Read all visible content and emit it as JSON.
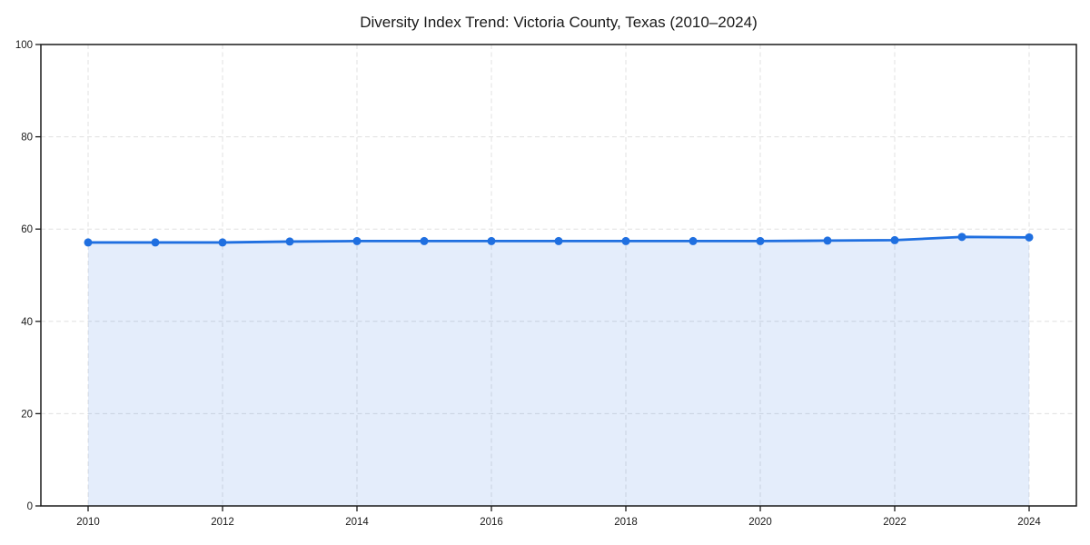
{
  "chart_data": {
    "type": "area",
    "title": "Diversity Index Trend: Victoria County, Texas (2010–2024)",
    "xlabel": "",
    "ylabel": "",
    "x": [
      2010,
      2011,
      2012,
      2013,
      2014,
      2015,
      2016,
      2017,
      2018,
      2019,
      2020,
      2021,
      2022,
      2023,
      2024
    ],
    "values": [
      57.1,
      57.1,
      57.1,
      57.3,
      57.4,
      57.4,
      57.4,
      57.4,
      57.4,
      57.4,
      57.4,
      57.5,
      57.6,
      58.3,
      58.2
    ],
    "ylim": [
      0,
      100
    ],
    "yticks": [
      0,
      20,
      40,
      60,
      80,
      100
    ],
    "xticks": [
      2010,
      2012,
      2014,
      2016,
      2018,
      2020,
      2022,
      2024
    ],
    "grid": true,
    "grid_style": "dashed",
    "legend": "none",
    "colors": {
      "line": "#1f6fe0",
      "marker": "#1f6fe0",
      "area_fill": "#1f6fe0",
      "area_opacity": 0.12,
      "grid": "#e0e0e0",
      "axis": "#1a1a1a",
      "text": "#1a1a1a",
      "background": "#ffffff"
    }
  }
}
